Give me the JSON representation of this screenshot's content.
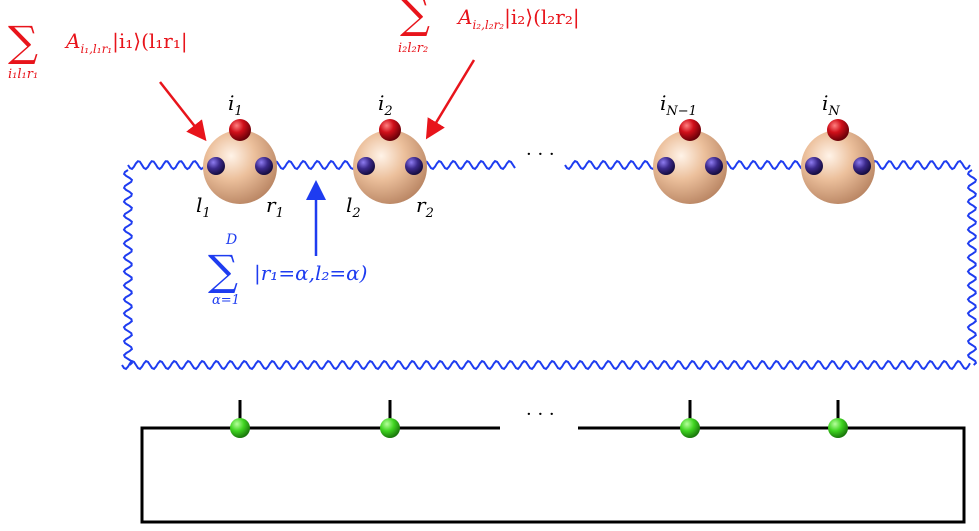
{
  "top_diagram": {
    "site_labels": [
      {
        "base": "i",
        "sub": "1"
      },
      {
        "base": "i",
        "sub": "2"
      },
      {
        "base": "i",
        "sub": "N−1"
      },
      {
        "base": "i",
        "sub": "N"
      }
    ],
    "bond_labels": {
      "l1": {
        "base": "l",
        "sub": "1"
      },
      "r1": {
        "base": "r",
        "sub": "1"
      },
      "l2": {
        "base": "l",
        "sub": "2"
      },
      "r2": {
        "base": "r",
        "sub": "2"
      }
    },
    "dots": "· · ·",
    "tensor_annotation_1": {
      "sum_symbol": "∑",
      "sum_index": "i₁l₁r₁",
      "term": "A",
      "term_sub": "i₁,l₁r₁",
      "term_rest": "|i₁⟩(l₁r₁|"
    },
    "tensor_annotation_2": {
      "sum_symbol": "∑",
      "sum_index": "i₂l₂r₂",
      "term": "A",
      "term_sub": "i₂,l₂r₂",
      "term_rest": "|i₂⟩(l₂r₂|"
    },
    "bond_annotation": {
      "sum_symbol": "∑",
      "sum_upper": "D",
      "sum_lower": "α=1",
      "term": "|r₁=α,l₂=α)"
    }
  },
  "bottom_diagram": {
    "dots": "· · ·"
  },
  "colors": {
    "annotation_red": "#e8141b",
    "bond_blue": "#1e3cf0",
    "site_sphere": "#e7b48e",
    "physical_red": "#c00010",
    "aux_purple": "#3c2a8c",
    "tensor_green": "#3fd420",
    "line_black": "#000000"
  }
}
